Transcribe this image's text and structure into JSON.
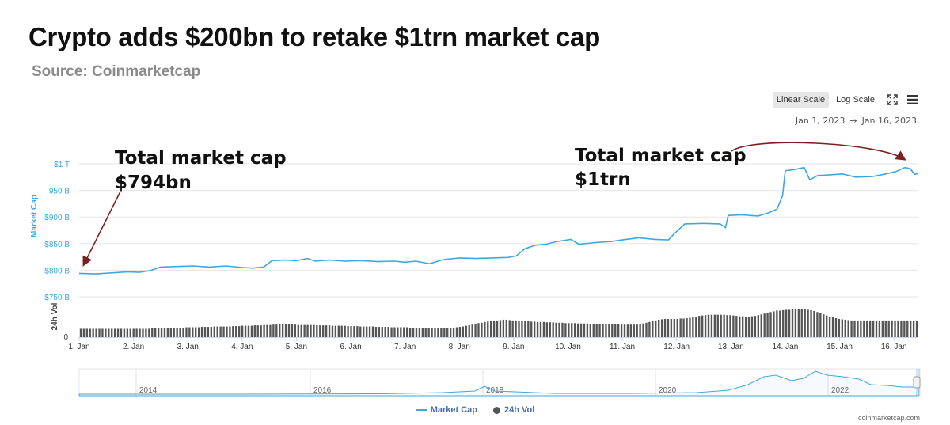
{
  "header": {
    "title": "Crypto adds $200bn to retake $1trn market cap",
    "subtitle": "Source: Coinmarketcap"
  },
  "toolbar": {
    "linear_label": "Linear Scale",
    "log_label": "Log Scale",
    "fullscreen_icon": "fullscreen-icon",
    "menu_icon": "hamburger-menu-icon"
  },
  "range": {
    "start": "Jan 1, 2023",
    "arrow": "→",
    "end": "Jan 16, 2023"
  },
  "annotations": {
    "left_line1": "Total market cap",
    "left_line2": "$794bn",
    "right_line1": "Total market cap",
    "right_line2": "$1trn",
    "arrow_color": "#7a1f22"
  },
  "chart_data": {
    "type": "line",
    "y_axis_label": "Market Cap",
    "vol_axis_label": "24h Vol",
    "y_ticks": [
      {
        "value": 1000,
        "label": "$1 T"
      },
      {
        "value": 950,
        "label": "950 B"
      },
      {
        "value": 900,
        "label": "$900 B"
      },
      {
        "value": 850,
        "label": "$850 B"
      },
      {
        "value": 800,
        "label": "$800 B"
      },
      {
        "value": 750,
        "label": "$750 B"
      }
    ],
    "ylim": [
      750,
      1000
    ],
    "x_ticks": [
      {
        "day": 1,
        "label": "1. Jan"
      },
      {
        "day": 2,
        "label": "2. Jan"
      },
      {
        "day": 3,
        "label": "3. Jan"
      },
      {
        "day": 4,
        "label": "4. Jan"
      },
      {
        "day": 5,
        "label": "5. Jan"
      },
      {
        "day": 6,
        "label": "6. Jan"
      },
      {
        "day": 7,
        "label": "7. Jan"
      },
      {
        "day": 8,
        "label": "8. Jan"
      },
      {
        "day": 9,
        "label": "9. Jan"
      },
      {
        "day": 10,
        "label": "10. Jan"
      },
      {
        "day": 11,
        "label": "11. Jan"
      },
      {
        "day": 12,
        "label": "12. Jan"
      },
      {
        "day": 13,
        "label": "13. Jan"
      },
      {
        "day": 14,
        "label": "14. Jan"
      },
      {
        "day": 15,
        "label": "15. Jan"
      },
      {
        "day": 16,
        "label": "16. Jan"
      }
    ],
    "xlim": [
      1,
      16.45
    ],
    "vol_zero_label": "0",
    "series": [
      {
        "name": "Market Cap",
        "color": "#3fa7de",
        "points": [
          [
            1.0,
            794
          ],
          [
            1.3,
            793
          ],
          [
            1.6,
            795
          ],
          [
            1.9,
            797
          ],
          [
            2.1,
            796
          ],
          [
            2.3,
            799
          ],
          [
            2.5,
            806
          ],
          [
            2.8,
            807
          ],
          [
            3.1,
            808
          ],
          [
            3.4,
            806
          ],
          [
            3.7,
            808
          ],
          [
            4.0,
            805
          ],
          [
            4.2,
            804
          ],
          [
            4.4,
            806
          ],
          [
            4.55,
            818
          ],
          [
            4.8,
            819
          ],
          [
            5.0,
            818
          ],
          [
            5.2,
            822
          ],
          [
            5.35,
            817
          ],
          [
            5.6,
            819
          ],
          [
            5.9,
            817
          ],
          [
            6.2,
            818
          ],
          [
            6.5,
            816
          ],
          [
            6.8,
            817
          ],
          [
            7.0,
            815
          ],
          [
            7.2,
            817
          ],
          [
            7.45,
            812
          ],
          [
            7.7,
            820
          ],
          [
            8.0,
            823
          ],
          [
            8.3,
            822
          ],
          [
            8.6,
            823
          ],
          [
            8.9,
            824
          ],
          [
            9.05,
            827
          ],
          [
            9.2,
            840
          ],
          [
            9.4,
            847
          ],
          [
            9.6,
            849
          ],
          [
            9.8,
            854
          ],
          [
            10.05,
            858
          ],
          [
            10.2,
            849
          ],
          [
            10.5,
            852
          ],
          [
            10.8,
            854
          ],
          [
            11.0,
            857
          ],
          [
            11.3,
            861
          ],
          [
            11.6,
            858
          ],
          [
            11.85,
            857
          ],
          [
            11.95,
            868
          ],
          [
            12.15,
            887
          ],
          [
            12.5,
            888
          ],
          [
            12.8,
            887
          ],
          [
            12.9,
            880
          ],
          [
            12.95,
            903
          ],
          [
            13.2,
            904
          ],
          [
            13.5,
            902
          ],
          [
            13.7,
            908
          ],
          [
            13.85,
            915
          ],
          [
            13.95,
            940
          ],
          [
            14.0,
            987
          ],
          [
            14.15,
            989
          ],
          [
            14.35,
            993
          ],
          [
            14.45,
            970
          ],
          [
            14.6,
            978
          ],
          [
            14.8,
            979
          ],
          [
            15.05,
            981
          ],
          [
            15.3,
            975
          ],
          [
            15.6,
            976
          ],
          [
            15.85,
            981
          ],
          [
            16.05,
            986
          ],
          [
            16.2,
            993
          ],
          [
            16.3,
            991
          ],
          [
            16.38,
            980
          ],
          [
            16.45,
            982
          ]
        ]
      },
      {
        "name": "24h Vol",
        "color": "#555555",
        "vol_max": 100,
        "values": [
          22,
          22,
          22,
          22,
          22,
          22,
          22,
          22,
          22,
          22,
          22,
          22,
          22,
          22,
          22,
          22,
          22,
          22,
          22,
          22,
          22,
          22,
          22,
          23,
          23,
          23,
          23,
          23,
          24,
          24,
          24,
          25,
          25,
          25,
          26,
          26,
          26,
          26,
          26,
          27,
          27,
          27,
          27,
          28,
          28,
          28,
          28,
          28,
          28,
          29,
          29,
          29,
          30,
          30,
          30,
          30,
          31,
          31,
          31,
          32,
          32,
          32,
          33,
          33,
          34,
          34,
          34,
          34,
          34,
          33,
          32,
          32,
          32,
          32,
          32,
          32,
          31,
          31,
          31,
          31,
          31,
          30,
          30,
          30,
          30,
          30,
          29,
          29,
          29,
          29,
          28,
          28,
          28,
          28,
          28,
          27,
          27,
          27,
          27,
          27,
          26,
          26,
          26,
          26,
          26,
          26,
          25,
          25,
          25,
          25,
          25,
          25,
          24,
          24,
          24,
          24,
          24,
          24,
          24,
          24,
          25,
          26,
          27,
          28,
          30,
          31,
          33,
          35,
          37,
          38,
          40,
          41,
          42,
          43,
          44,
          45,
          46,
          46,
          45,
          44,
          44,
          43,
          43,
          42,
          42,
          41,
          41,
          40,
          40,
          40,
          39,
          39,
          39,
          38,
          38,
          38,
          37,
          37,
          37,
          37,
          36,
          36,
          36,
          36,
          35,
          35,
          35,
          35,
          35,
          34,
          34,
          34,
          34,
          34,
          33,
          33,
          33,
          33,
          33,
          33,
          34,
          36,
          38,
          40,
          42,
          44,
          46,
          47,
          48,
          48,
          48,
          48,
          48,
          49,
          49,
          50,
          51,
          52,
          54,
          56,
          57,
          58,
          59,
          59,
          59,
          59,
          59,
          59,
          58,
          58,
          57,
          56,
          55,
          55,
          54,
          54,
          55,
          56,
          58,
          60,
          62,
          64,
          66,
          68,
          70,
          70,
          71,
          72,
          72,
          73,
          73,
          74,
          74,
          73,
          72,
          71,
          69,
          66,
          63,
          60,
          57,
          54,
          52,
          50,
          48,
          47,
          46,
          45,
          44,
          44,
          44,
          44,
          44,
          44,
          44,
          44,
          44,
          44,
          44,
          44,
          44,
          44,
          44,
          44,
          44,
          44,
          44,
          44,
          44,
          44
        ]
      }
    ],
    "navigator": {
      "labels": [
        "2014",
        "2016",
        "2018",
        "2020",
        "2022"
      ]
    },
    "legend": [
      {
        "name": "Market Cap",
        "marker": "line"
      },
      {
        "name": "24h Vol",
        "marker": "dot"
      }
    ],
    "legend_position": "bottom-center",
    "grid": true
  },
  "footer": {
    "credit": "coinmarketcap.com"
  }
}
